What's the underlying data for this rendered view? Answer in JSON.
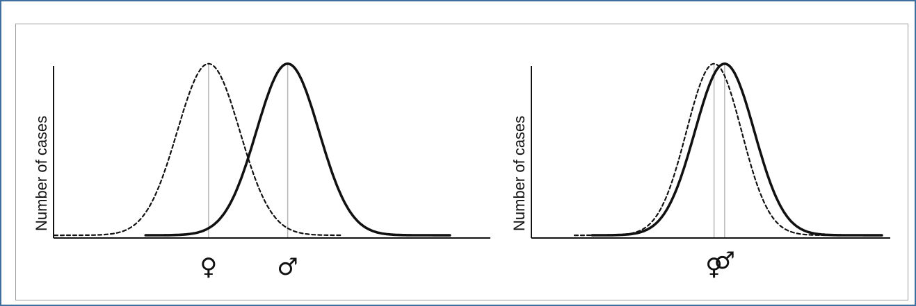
{
  "chart_data": [
    {
      "type": "line",
      "ylabel": "Number of cases",
      "xlabel": "",
      "x_ticks": [
        {
          "label": "♀",
          "x": 35.5
        },
        {
          "label": "♂",
          "x": 53.7
        }
      ],
      "xlim": [
        0,
        100
      ],
      "ylim": [
        0,
        1
      ],
      "grid": false,
      "series": [
        {
          "style": "dashed",
          "mean": 35.5,
          "sd": 7.2,
          "range": [
            0,
            66
          ],
          "peak": 0.94,
          "color": "#111111"
        },
        {
          "style": "solid",
          "mean": 53.7,
          "sd": 7.2,
          "range": [
            21,
            91
          ],
          "peak": 0.94,
          "color": "#111111"
        }
      ]
    },
    {
      "type": "line",
      "ylabel": "Number of cases",
      "xlabel": "",
      "x_ticks": [
        {
          "label": "♀",
          "x": 51.5
        },
        {
          "label": "♂",
          "x": 54.5
        }
      ],
      "xlim": [
        0,
        100
      ],
      "ylim": [
        0,
        1
      ],
      "grid": false,
      "series": [
        {
          "style": "dashed",
          "mean": 51.5,
          "sd": 7.8,
          "range": [
            12,
            91
          ],
          "peak": 0.94,
          "color": "#111111"
        },
        {
          "style": "solid",
          "mean": 54.5,
          "sd": 8.4,
          "range": [
            17,
            99
          ],
          "peak": 0.94,
          "color": "#111111"
        }
      ]
    }
  ]
}
